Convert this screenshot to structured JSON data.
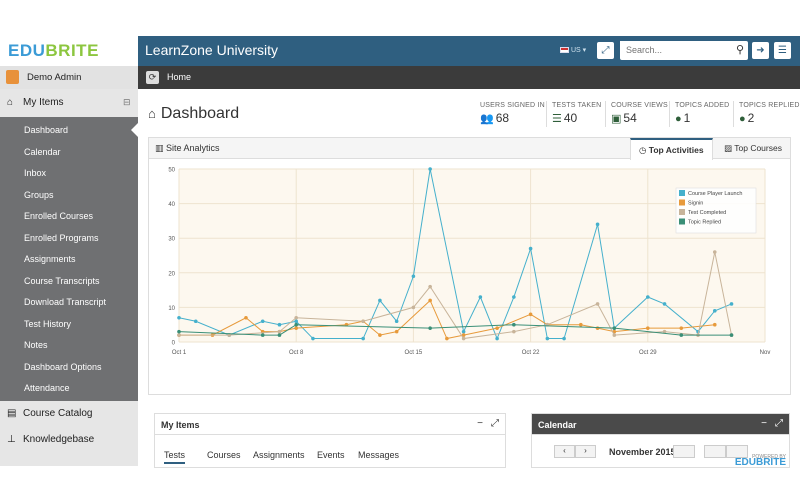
{
  "brand": {
    "logo_part1": "EDU",
    "logo_part2": "BRITE"
  },
  "header": {
    "title": "LearnZone University",
    "locale": "US",
    "search_placeholder": "Search..."
  },
  "user": {
    "name": "Demo Admin"
  },
  "breadcrumb": {
    "home": "Home"
  },
  "sidebar": {
    "section": "My Items",
    "items": [
      {
        "label": "Dashboard",
        "active": true
      },
      {
        "label": "Calendar"
      },
      {
        "label": "Inbox"
      },
      {
        "label": "Groups"
      },
      {
        "label": "Enrolled Courses"
      },
      {
        "label": "Enrolled Programs"
      },
      {
        "label": "Assignments"
      },
      {
        "label": "Course Transcripts"
      },
      {
        "label": "Download Transcript"
      },
      {
        "label": "Test History"
      },
      {
        "label": "Notes"
      },
      {
        "label": "Dashboard Options"
      },
      {
        "label": "Attendance"
      }
    ],
    "course_catalog": "Course Catalog",
    "knowledgebase": "Knowledgebase"
  },
  "dashboard": {
    "title": "Dashboard",
    "stats": [
      {
        "label": "USERS SIGNED IN",
        "value": "68",
        "icon": "users-icon"
      },
      {
        "label": "TESTS TAKEN",
        "value": "40",
        "icon": "list-icon"
      },
      {
        "label": "COURSE VIEWS",
        "value": "54",
        "icon": "book-icon"
      },
      {
        "label": "TOPICS ADDED",
        "value": "1",
        "icon": "comment-icon"
      },
      {
        "label": "TOPICS REPLIED",
        "value": "2",
        "icon": "comments-icon"
      }
    ]
  },
  "analytics": {
    "title": "Site Analytics",
    "tabs": [
      "Top Activities",
      "Top Courses"
    ]
  },
  "colors": {
    "navbar": "#2f5f80",
    "sidebar": "#6f7072",
    "series1": "#45b0cc",
    "series2": "#e79a3b",
    "series3": "#c8b49a",
    "series4": "#3a8f77"
  },
  "chart_data": {
    "type": "line",
    "x_ticks": [
      "Oct 1",
      "Oct 8",
      "Oct 15",
      "Oct 22",
      "Oct 29",
      "Nov"
    ],
    "y_ticks": [
      0,
      10,
      20,
      30,
      40,
      50
    ],
    "ylim": [
      0,
      50
    ],
    "x_range": [
      0,
      35
    ],
    "legend_position": "top-right",
    "series": [
      {
        "name": "Course Player Launch",
        "points": [
          [
            0,
            7
          ],
          [
            1,
            6
          ],
          [
            3,
            2
          ],
          [
            5,
            6
          ],
          [
            6,
            5
          ],
          [
            7,
            6
          ],
          [
            8,
            1
          ],
          [
            11,
            1
          ],
          [
            12,
            12
          ],
          [
            13,
            6
          ],
          [
            14,
            19
          ],
          [
            15,
            50
          ],
          [
            17,
            3
          ],
          [
            18,
            13
          ],
          [
            19,
            1
          ],
          [
            20,
            13
          ],
          [
            21,
            27
          ],
          [
            22,
            1
          ],
          [
            23,
            1
          ],
          [
            25,
            34
          ],
          [
            26,
            4
          ],
          [
            28,
            13
          ],
          [
            29,
            11
          ],
          [
            31,
            3
          ],
          [
            32,
            9
          ],
          [
            33,
            11
          ]
        ]
      },
      {
        "name": "Signin",
        "points": [
          [
            0,
            2
          ],
          [
            2,
            2
          ],
          [
            4,
            7
          ],
          [
            5,
            3
          ],
          [
            6,
            3
          ],
          [
            7,
            4
          ],
          [
            10,
            5
          ],
          [
            11,
            6
          ],
          [
            12,
            2
          ],
          [
            13,
            3
          ],
          [
            15,
            12
          ],
          [
            16,
            1
          ],
          [
            17,
            2
          ],
          [
            19,
            4
          ],
          [
            21,
            8
          ],
          [
            22,
            5
          ],
          [
            24,
            5
          ],
          [
            25,
            4
          ],
          [
            26,
            3
          ],
          [
            28,
            4
          ],
          [
            30,
            4
          ],
          [
            32,
            5
          ]
        ]
      },
      {
        "name": "Test Completed",
        "points": [
          [
            0,
            2
          ],
          [
            3,
            2
          ],
          [
            6,
            3
          ],
          [
            7,
            7
          ],
          [
            11,
            6
          ],
          [
            14,
            10
          ],
          [
            15,
            16
          ],
          [
            17,
            1
          ],
          [
            20,
            3
          ],
          [
            22,
            5
          ],
          [
            25,
            11
          ],
          [
            26,
            2
          ],
          [
            29,
            3
          ],
          [
            31,
            2
          ],
          [
            32,
            26
          ],
          [
            33,
            2
          ]
        ]
      },
      {
        "name": "Topic Replied",
        "points": [
          [
            0,
            3
          ],
          [
            5,
            2
          ],
          [
            6,
            2
          ],
          [
            7,
            5
          ],
          [
            15,
            4
          ],
          [
            20,
            5
          ],
          [
            26,
            4
          ],
          [
            30,
            2
          ],
          [
            33,
            2
          ]
        ]
      }
    ]
  },
  "my_items_panel": {
    "title": "My Items",
    "tabs": [
      "Tests",
      "Courses",
      "Assignments",
      "Events",
      "Messages"
    ]
  },
  "calendar_panel": {
    "title": "Calendar",
    "month": "November 2015"
  },
  "powered": {
    "line1": "POWERED BY",
    "line2": "EDUBRITE"
  }
}
